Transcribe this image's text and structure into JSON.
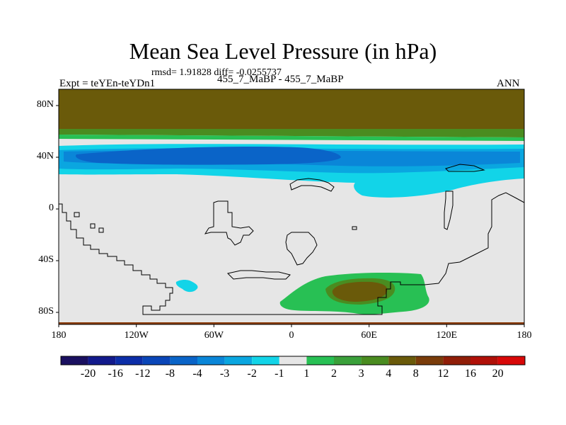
{
  "title": "Mean Sea Level Pressure (in hPa)",
  "stats_line": "rmsd= 1.91828  diff= -0.0255737",
  "experiment_label": "Expt = teYEn-teYDn1",
  "comparison_label": "455_7_MaBP - 455_7_MaBP",
  "season_label": "ANN",
  "map": {
    "x_ticks": [
      "180",
      "120W",
      "60W",
      "0",
      "60E",
      "120E",
      "180"
    ],
    "y_ticks": [
      "80N",
      "40N",
      "0",
      "40S",
      "80S"
    ],
    "lon_range": [
      -180,
      180
    ],
    "lat_range": [
      -90,
      90
    ]
  },
  "colorbar": {
    "labels": [
      "-20",
      "-16",
      "-12",
      "-8",
      "-4",
      "-3",
      "-2",
      "-1",
      "1",
      "2",
      "3",
      "4",
      "8",
      "12",
      "16",
      "20"
    ],
    "colors": [
      "#1a1060",
      "#121a8c",
      "#0c2ea8",
      "#0a46b8",
      "#0a64c8",
      "#0a86d8",
      "#0aa6e0",
      "#12d4e8",
      "#e6e6e6",
      "#28c054",
      "#3aa03a",
      "#4a8c20",
      "#6a5a0a",
      "#7a3c0a",
      "#901e08",
      "#b01008",
      "#d80808"
    ]
  }
}
